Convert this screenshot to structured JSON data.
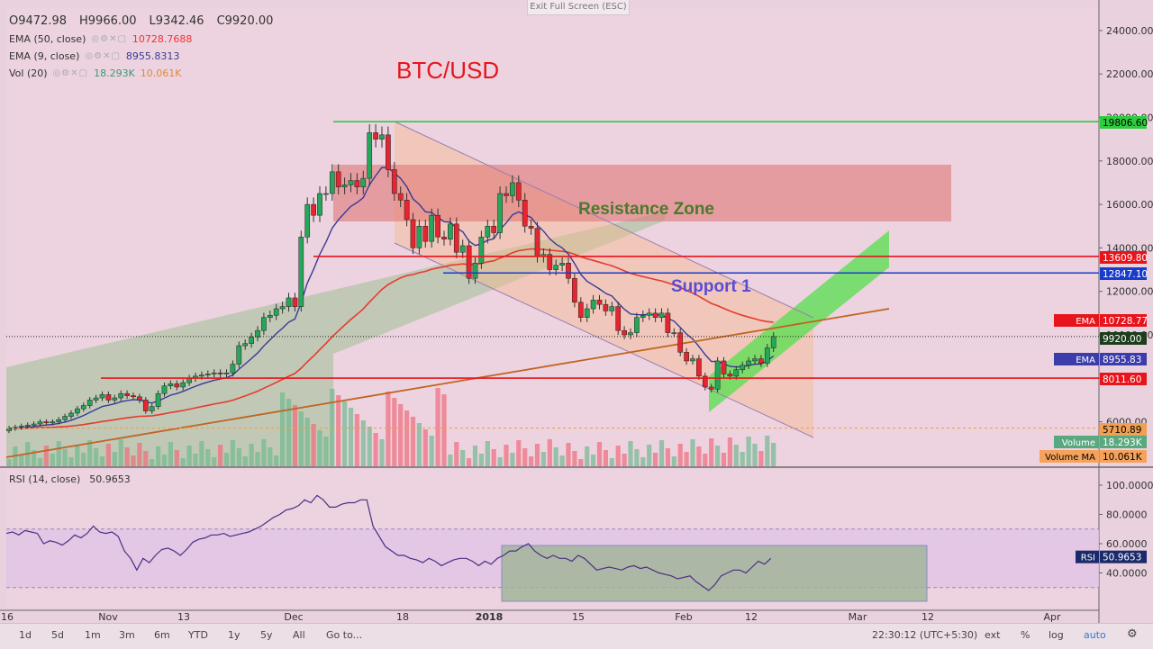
{
  "top_button": "Exit Full Screen (ESC)",
  "ohlc": {
    "o": "O9472.98",
    "h": "H9966.00",
    "l": "L9342.46",
    "c": "C9920.00"
  },
  "legend": [
    {
      "label": "EMA (50, close)",
      "value": "10728.7688",
      "value2": "",
      "color": "#e33",
      "color2": ""
    },
    {
      "label": "EMA (9, close)",
      "value": "8955.8313",
      "value2": "",
      "color": "#3a3a9a",
      "color2": ""
    },
    {
      "label": "Vol (20)",
      "value": "18.293K",
      "value2": "10.061K",
      "color": "#3f9a72",
      "color2": "#e08a3c"
    }
  ],
  "rsi_legend": {
    "label": "RSI (14, close)",
    "value": "50.9653"
  },
  "annotations": {
    "title": "BTC/USD",
    "resistance": "Resistance Zone",
    "support": "Support 1"
  },
  "price_tags": [
    {
      "label": "",
      "value": "19806.60",
      "bg": "#2ecc40",
      "fg": "#000"
    },
    {
      "label": "",
      "value": "13609.80",
      "bg": "#e8141c",
      "fg": "#fff"
    },
    {
      "label": "",
      "value": "12847.10",
      "bg": "#1a3ccc",
      "fg": "#fff"
    },
    {
      "label": "EMA",
      "value": "10728.77",
      "bg": "#e8141c",
      "fg": "#fff"
    },
    {
      "label": "",
      "value": "9920.00",
      "bg": "#1d3d1d",
      "fg": "#fff"
    },
    {
      "label": "EMA",
      "value": "8955.83",
      "bg": "#3c3caa",
      "fg": "#fff"
    },
    {
      "label": "",
      "value": "8011.60",
      "bg": "#e8141c",
      "fg": "#fff"
    },
    {
      "label": "",
      "value": "5710.89",
      "bg": "#f0a050",
      "fg": "#000"
    },
    {
      "label": "Volume",
      "value": "18.293K",
      "bg": "#5aa87e",
      "fg": "#fff"
    },
    {
      "label": "Volume MA",
      "value": "10.061K",
      "bg": "#f5a35c",
      "fg": "#000"
    }
  ],
  "rsi_tag": {
    "label": "RSI",
    "value": "50.9653"
  },
  "timeframes": [
    "1d",
    "5d",
    "1m",
    "3m",
    "6m",
    "YTD",
    "1y",
    "5y",
    "All",
    "Go to..."
  ],
  "bottom_right": {
    "time": "22:30:12 (UTC+5:30)",
    "ext": "ext",
    "pct": "%",
    "log": "log",
    "auto": "auto"
  },
  "chart_data": {
    "type": "candlestick",
    "title": "BTC/USD",
    "price_axis": [
      24000,
      22000,
      20000,
      18000,
      16000,
      14000,
      12000,
      10000,
      8000,
      6000
    ],
    "price_axis_labels": [
      "24000.00",
      "22000.00",
      "20000.00",
      "18000.00",
      "16000.00",
      "14000.00",
      "12000.00",
      "10000.00",
      "8000.00",
      "6000.00"
    ],
    "rsi_axis": [
      100,
      80,
      60,
      40
    ],
    "rsi_axis_labels": [
      "100.0000",
      "80.0000",
      "60.0000",
      "40.0000"
    ],
    "time_axis": [
      {
        "label": "16",
        "day": -46
      },
      {
        "label": "Nov",
        "day": -61
      },
      {
        "label": "13",
        "day": -49
      },
      {
        "label": "Dec",
        "day": -31
      },
      {
        "label": "18",
        "day": -14
      },
      {
        "label": "2018",
        "day": 0
      },
      {
        "label": "15",
        "day": 14
      },
      {
        "label": "Feb",
        "day": 31
      },
      {
        "label": "12",
        "day": 42
      },
      {
        "label": "Mar",
        "day": 59
      },
      {
        "label": "12",
        "day": 70
      },
      {
        "label": "Apr",
        "day": 90
      }
    ],
    "closes": [
      5700,
      5750,
      5800,
      5850,
      5900,
      6000,
      5950,
      6000,
      6100,
      6250,
      6400,
      6600,
      6750,
      7000,
      7100,
      7250,
      7000,
      7100,
      7300,
      7200,
      7150,
      7000,
      6500,
      6700,
      7300,
      7650,
      7750,
      7600,
      7800,
      8000,
      8100,
      8150,
      8200,
      8250,
      8200,
      8250,
      8650,
      9500,
      9600,
      9900,
      10200,
      10800,
      10900,
      11200,
      11300,
      11700,
      11300,
      14500,
      16000,
      15500,
      16500,
      16500,
      17500,
      16800,
      16900,
      17100,
      16800,
      17200,
      19300,
      19000,
      19200,
      17600,
      16500,
      16200,
      15300,
      14000,
      15000,
      14300,
      15500,
      14500,
      14400,
      15100,
      13800,
      14100,
      12600,
      13300,
      14500,
      15000,
      14700,
      16500,
      16400,
      17000,
      16200,
      15000,
      14900,
      13600,
      13700,
      13000,
      13200,
      13300,
      12600,
      11500,
      10800,
      11200,
      11600,
      11400,
      11100,
      11300,
      10200,
      10000,
      10100,
      10800,
      10900,
      11000,
      10800,
      11000,
      10100,
      10100,
      9200,
      8800,
      8900,
      8100,
      7600,
      7500,
      8800,
      8200,
      8100,
      8400,
      8600,
      8800,
      8900,
      8700,
      9400,
      9920
    ],
    "ema50_last": 10728.77,
    "ema9_last": 8955.83,
    "volume_last": "18.293K",
    "volume_ma_last": "10.061K",
    "rsi_last": 50.9653,
    "levels": [
      19806.6,
      13609.8,
      12847.1,
      8011.6,
      5710.89
    ],
    "zones": [
      "Resistance Zone"
    ]
  }
}
